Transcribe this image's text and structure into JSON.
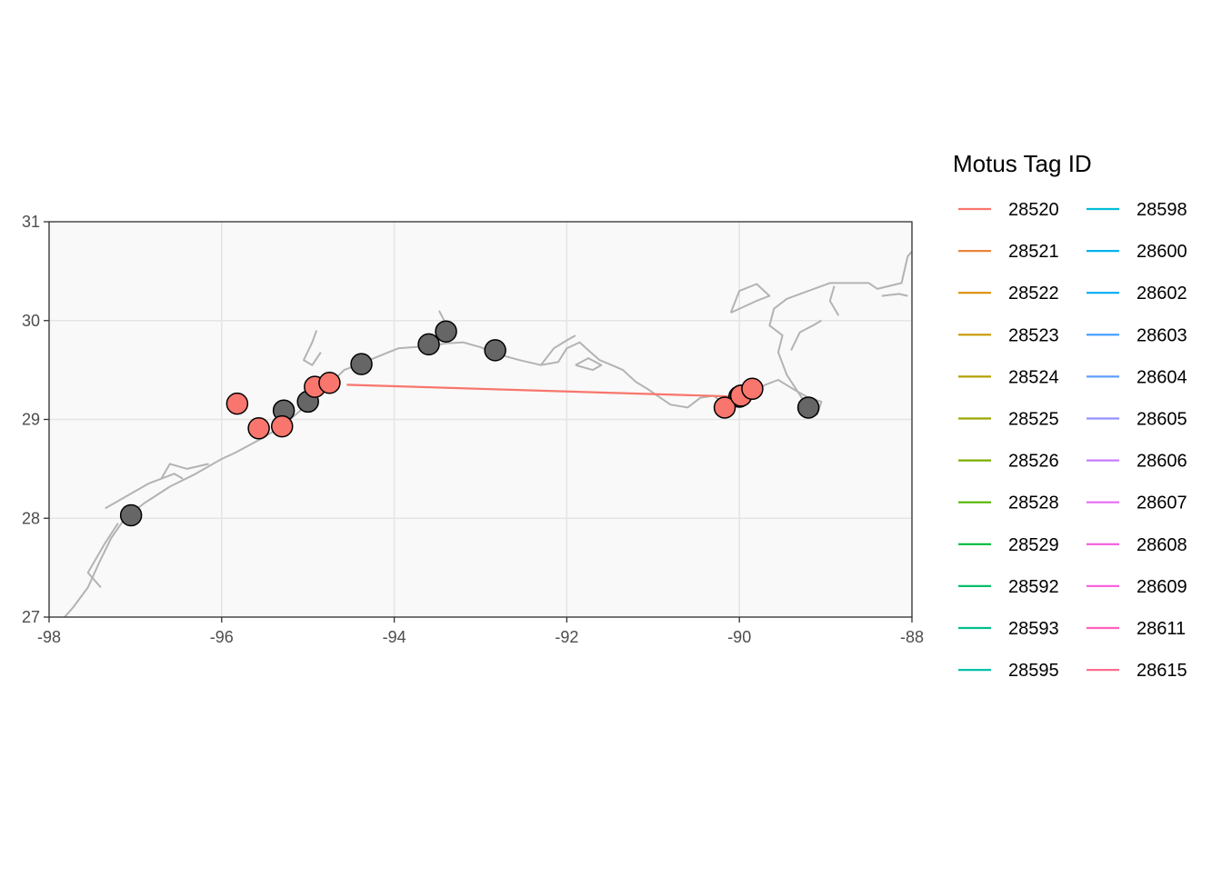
{
  "chart_data": {
    "type": "map",
    "xlim": [
      -98,
      -88
    ],
    "ylim": [
      27,
      31
    ],
    "x_ticks": [
      "-98",
      "-96",
      "-94",
      "-92",
      "-90",
      "-88"
    ],
    "y_ticks": [
      "27",
      "28",
      "29",
      "30",
      "31"
    ],
    "grid": true,
    "colors": {
      "panel_background": "#f9f9f9",
      "grid": "#e5e5e5",
      "coastline": "#b3b3b3",
      "station_fill": "#666666",
      "detection_fill": "#f8766d",
      "point_stroke": "#000000"
    },
    "coastline": [
      [
        -97.82,
        27.0
      ],
      [
        -97.72,
        27.1
      ],
      [
        -97.55,
        27.3
      ],
      [
        -97.42,
        27.55
      ],
      [
        -97.28,
        27.8
      ],
      [
        -97.12,
        28.0
      ],
      [
        -96.9,
        28.15
      ],
      [
        -96.6,
        28.32
      ],
      [
        -96.3,
        28.45
      ],
      [
        -96.0,
        28.6
      ],
      [
        -95.85,
        28.66
      ],
      [
        -95.55,
        28.8
      ],
      [
        -95.3,
        28.93
      ],
      [
        -95.1,
        29.08
      ],
      [
        -94.95,
        29.2
      ],
      [
        -94.8,
        29.32
      ],
      [
        -94.7,
        29.4
      ],
      [
        -94.58,
        29.5
      ],
      [
        -94.4,
        29.56
      ],
      [
        -94.15,
        29.65
      ],
      [
        -93.95,
        29.72
      ],
      [
        -93.8,
        29.73
      ],
      [
        -93.6,
        29.74
      ],
      [
        -93.4,
        29.77
      ],
      [
        -93.2,
        29.78
      ],
      [
        -93.0,
        29.73
      ],
      [
        -92.8,
        29.66
      ],
      [
        -92.55,
        29.6
      ],
      [
        -92.3,
        29.55
      ],
      [
        -92.1,
        29.58
      ],
      [
        -92.0,
        29.72
      ],
      [
        -91.85,
        29.78
      ],
      [
        -91.75,
        29.7
      ],
      [
        -91.62,
        29.6
      ],
      [
        -91.48,
        29.55
      ],
      [
        -91.35,
        29.5
      ],
      [
        -91.2,
        29.38
      ],
      [
        -91.05,
        29.3
      ],
      [
        -90.8,
        29.15
      ],
      [
        -90.6,
        29.12
      ],
      [
        -90.45,
        29.22
      ],
      [
        -90.3,
        29.24
      ],
      [
        -90.15,
        29.15
      ],
      [
        -90.05,
        29.2
      ],
      [
        -89.95,
        29.28
      ],
      [
        -89.8,
        29.3
      ],
      [
        -89.7,
        29.35
      ],
      [
        -89.55,
        29.4
      ],
      [
        -89.4,
        29.32
      ],
      [
        -89.2,
        29.22
      ],
      [
        -89.05,
        29.18
      ],
      [
        -89.1,
        29.05
      ],
      [
        -89.18,
        29.1
      ],
      [
        -89.3,
        29.25
      ],
      [
        -89.45,
        29.45
      ],
      [
        -89.55,
        29.68
      ],
      [
        -89.5,
        29.85
      ],
      [
        -89.65,
        29.95
      ],
      [
        -89.6,
        30.12
      ],
      [
        -89.45,
        30.22
      ],
      [
        -89.2,
        30.3
      ],
      [
        -88.95,
        30.38
      ],
      [
        -88.7,
        30.38
      ],
      [
        -88.5,
        30.38
      ],
      [
        -88.4,
        30.32
      ],
      [
        -88.12,
        30.38
      ],
      [
        -88.05,
        30.65
      ],
      [
        -88.0,
        30.7
      ]
    ],
    "coast_extras": [
      [
        [
          -97.35,
          28.1
        ],
        [
          -97.15,
          28.2
        ],
        [
          -96.85,
          28.35
        ],
        [
          -96.55,
          28.45
        ],
        [
          -96.45,
          28.4
        ]
      ],
      [
        [
          -97.4,
          27.3
        ],
        [
          -97.55,
          27.45
        ],
        [
          -97.35,
          27.75
        ],
        [
          -97.2,
          27.95
        ]
      ],
      [
        [
          -96.7,
          28.4
        ],
        [
          -96.6,
          28.55
        ],
        [
          -96.4,
          28.5
        ],
        [
          -96.15,
          28.55
        ]
      ],
      [
        [
          -94.85,
          29.68
        ],
        [
          -94.95,
          29.55
        ],
        [
          -95.05,
          29.6
        ],
        [
          -94.95,
          29.78
        ],
        [
          -94.9,
          29.9
        ]
      ],
      [
        [
          -93.45,
          29.78
        ],
        [
          -93.42,
          30.0
        ],
        [
          -93.48,
          30.1
        ]
      ],
      [
        [
          -92.3,
          29.55
        ],
        [
          -92.15,
          29.72
        ],
        [
          -92.0,
          29.8
        ],
        [
          -91.9,
          29.85
        ]
      ],
      [
        [
          -91.9,
          29.55
        ],
        [
          -91.7,
          29.5
        ],
        [
          -91.6,
          29.55
        ],
        [
          -91.75,
          29.62
        ],
        [
          -91.9,
          29.55
        ]
      ],
      [
        [
          -90.1,
          30.08
        ],
        [
          -90.0,
          30.3
        ],
        [
          -89.8,
          30.37
        ],
        [
          -89.65,
          30.25
        ],
        [
          -89.8,
          30.2
        ],
        [
          -90.1,
          30.08
        ]
      ],
      [
        [
          -89.4,
          29.7
        ],
        [
          -89.3,
          29.88
        ],
        [
          -89.15,
          29.95
        ],
        [
          -89.05,
          30.0
        ]
      ],
      [
        [
          -88.85,
          30.05
        ],
        [
          -88.95,
          30.2
        ],
        [
          -88.9,
          30.35
        ]
      ],
      [
        [
          -88.35,
          30.25
        ],
        [
          -88.15,
          30.27
        ],
        [
          -88.05,
          30.25
        ]
      ]
    ],
    "track": [
      [
        -94.55,
        29.35
      ],
      [
        -90.0,
        29.23
      ]
    ],
    "stations": [
      [
        -97.05,
        28.03
      ],
      [
        -95.28,
        29.09
      ],
      [
        -95.0,
        29.18
      ],
      [
        -94.38,
        29.56
      ],
      [
        -93.6,
        29.76
      ],
      [
        -93.4,
        29.89
      ],
      [
        -92.83,
        29.7
      ],
      [
        -90.0,
        29.23
      ],
      [
        -89.98,
        29.24
      ],
      [
        -89.2,
        29.12
      ]
    ],
    "detections": [
      [
        -95.82,
        29.16
      ],
      [
        -95.57,
        28.91
      ],
      [
        -95.3,
        28.93
      ],
      [
        -94.92,
        29.33
      ],
      [
        -94.75,
        29.37
      ],
      [
        -90.17,
        29.12
      ],
      [
        -89.98,
        29.24
      ],
      [
        -89.85,
        29.31
      ]
    ],
    "legend": {
      "title": "Motus Tag ID",
      "placement": "right",
      "items": [
        {
          "label": "28520",
          "color": "#F8766D"
        },
        {
          "label": "28521",
          "color": "#EC823C"
        },
        {
          "label": "28522",
          "color": "#DC8E00"
        },
        {
          "label": "28523",
          "color": "#C99800"
        },
        {
          "label": "28524",
          "color": "#B3A000"
        },
        {
          "label": "28525",
          "color": "#99A800"
        },
        {
          "label": "28526",
          "color": "#7CAE00"
        },
        {
          "label": "28528",
          "color": "#53B400"
        },
        {
          "label": "28529",
          "color": "#00BA38"
        },
        {
          "label": "28592",
          "color": "#00BE67"
        },
        {
          "label": "28593",
          "color": "#00C08B"
        },
        {
          "label": "28595",
          "color": "#00C0AB"
        },
        {
          "label": "28598",
          "color": "#00BCD6"
        },
        {
          "label": "28600",
          "color": "#00B4EF"
        },
        {
          "label": "28602",
          "color": "#00A9FF"
        },
        {
          "label": "28603",
          "color": "#3D9CFF"
        },
        {
          "label": "28604",
          "color": "#619CFF"
        },
        {
          "label": "28605",
          "color": "#9590FF"
        },
        {
          "label": "28606",
          "color": "#C77CFF"
        },
        {
          "label": "28607",
          "color": "#E76BF3"
        },
        {
          "label": "28608",
          "color": "#F25ADE"
        },
        {
          "label": "28609",
          "color": "#FA62DB"
        },
        {
          "label": "28611",
          "color": "#FF62BC"
        },
        {
          "label": "28615",
          "color": "#FF6C91"
        }
      ]
    }
  }
}
